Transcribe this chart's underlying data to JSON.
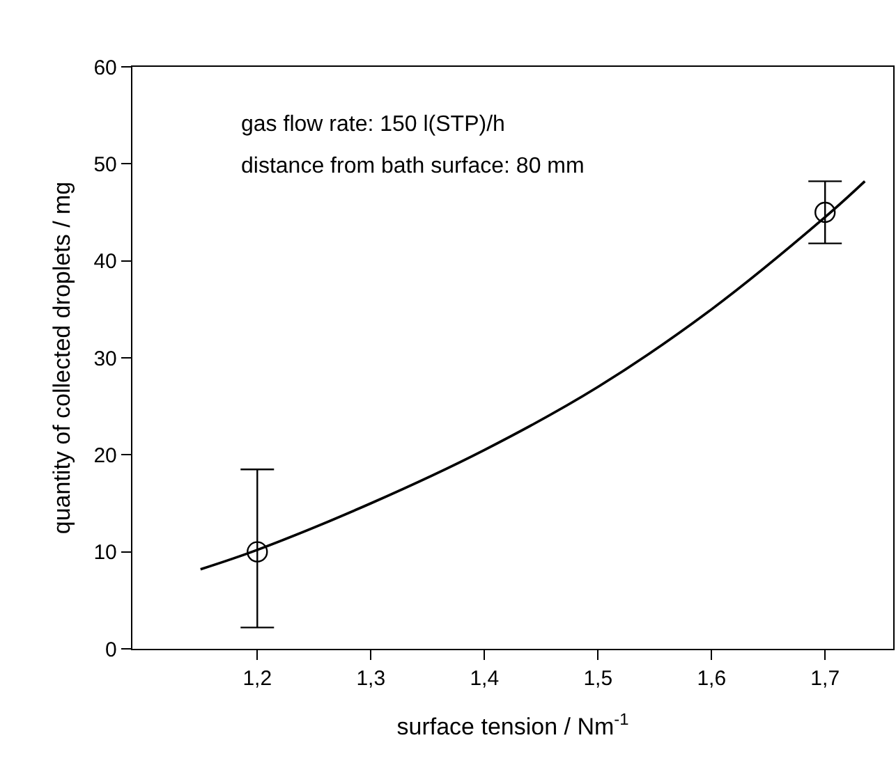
{
  "chart_data": {
    "type": "scatter",
    "xlabel": "surface tension / Nm$^{-1}$",
    "ylabel": "quantity of collected droplets / mg",
    "xlim": [
      1.09,
      1.76
    ],
    "ylim": [
      0,
      60
    ],
    "xticks": [
      {
        "value": 1.2,
        "label": "1,2"
      },
      {
        "value": 1.3,
        "label": "1,3"
      },
      {
        "value": 1.4,
        "label": "1,4"
      },
      {
        "value": 1.5,
        "label": "1,5"
      },
      {
        "value": 1.6,
        "label": "1,6"
      },
      {
        "value": 1.7,
        "label": "1,7"
      }
    ],
    "yticks": [
      0,
      10,
      20,
      30,
      40,
      50,
      60
    ],
    "grid": false,
    "annotations": [
      "gas flow rate: 150 l(STP)/h",
      "distance from bath surface: 80 mm"
    ],
    "series": [
      {
        "marker": "circle",
        "color": "#000000",
        "x": [
          1.2,
          1.7
        ],
        "values": [
          10,
          45
        ],
        "errors": [
          [
            2.2,
            18.5
          ],
          [
            41.8,
            48.2
          ]
        ]
      },
      {
        "type": "line",
        "color": "#000000",
        "x": [
          1.15,
          1.2,
          1.3,
          1.4,
          1.5,
          1.6,
          1.7,
          1.735
        ],
        "values": [
          8.2,
          10.2,
          15,
          20.5,
          27,
          35,
          44.5,
          48.2
        ]
      }
    ]
  }
}
